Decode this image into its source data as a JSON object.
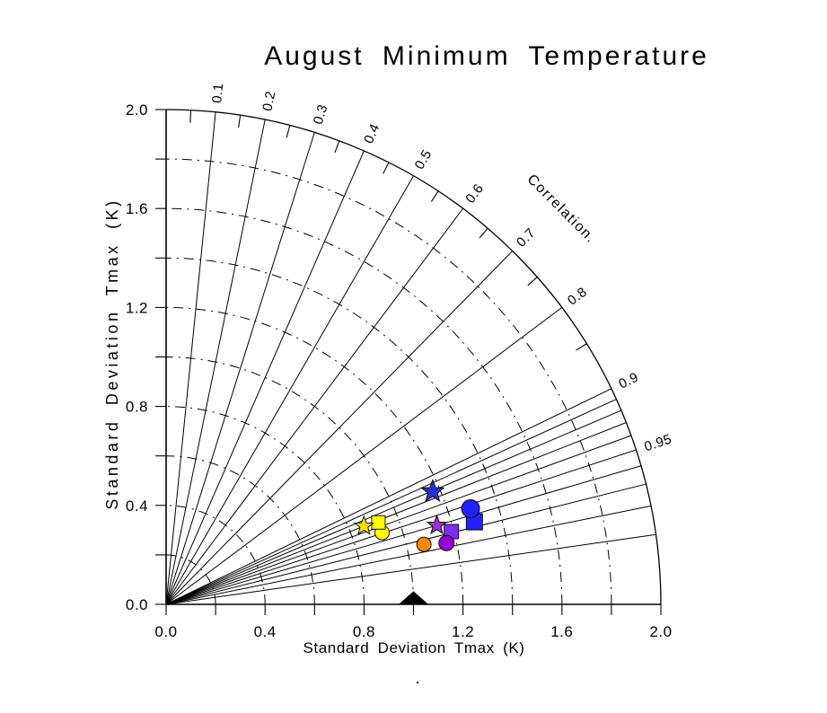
{
  "chart_data": {
    "type": "taylor_diagram",
    "title": "August Minimum Temperature",
    "xlabel": "Standard Deviation Tmax (K)",
    "ylabel": "Standard Deviation Tmax (K)",
    "correlation_axis_label": "Correlation.",
    "axis_range": [
      0.0,
      2.0
    ],
    "tick_values": [
      0.0,
      0.4,
      0.8,
      1.2,
      1.6,
      2.0
    ],
    "tick_labels": [
      "0.0",
      "0.4",
      "0.8",
      "1.2",
      "1.6",
      "2.0"
    ],
    "minor_tick_step": 0.2,
    "grid_style": "dash-dot",
    "std_arc_radii": [
      0.2,
      0.4,
      0.6,
      0.8,
      1.0,
      1.2,
      1.4,
      1.6,
      1.8
    ],
    "correlation_lines": [
      0.1,
      0.2,
      0.3,
      0.4,
      0.5,
      0.6,
      0.7,
      0.8,
      0.9,
      0.91,
      0.92,
      0.93,
      0.94,
      0.95,
      0.96,
      0.97,
      0.98,
      0.99
    ],
    "correlation_minor_ticks": [
      0.05,
      0.15,
      0.25,
      0.35,
      0.45,
      0.55,
      0.65,
      0.75,
      0.85
    ],
    "correlation_labels": [
      {
        "value": 0.1,
        "label": "0.1"
      },
      {
        "value": 0.2,
        "label": "0.2"
      },
      {
        "value": 0.3,
        "label": "0.3"
      },
      {
        "value": 0.4,
        "label": "0.4"
      },
      {
        "value": 0.5,
        "label": "0.5"
      },
      {
        "value": 0.6,
        "label": "0.6"
      },
      {
        "value": 0.7,
        "label": "0.7"
      },
      {
        "value": 0.8,
        "label": "0.8"
      },
      {
        "value": 0.9,
        "label": "0.9"
      },
      {
        "value": 0.95,
        "label": "0.95"
      }
    ],
    "reference_marker": {
      "id": "reference-triangle",
      "marker": "triangle",
      "color": "#000000",
      "std": 1.0,
      "corr": 1.0,
      "width": 32,
      "height": 14
    },
    "points": [
      {
        "id": "yellow-circle",
        "marker": "circle",
        "color": "#FFFF00",
        "std": 0.92,
        "corr": 0.949,
        "size": 16
      },
      {
        "id": "yellow-square",
        "marker": "square",
        "color": "#FFFF00",
        "std": 0.92,
        "corr": 0.933,
        "size": 15
      },
      {
        "id": "yellow-star",
        "marker": "star",
        "color": "#FFDD00",
        "std": 0.86,
        "corr": 0.93,
        "size": 22
      },
      {
        "id": "blue-star",
        "marker": "star",
        "color": "#2233CC",
        "std": 1.17,
        "corr": 0.921,
        "size": 26
      },
      {
        "id": "blue-square",
        "marker": "square",
        "color": "#2222FF",
        "std": 1.29,
        "corr": 0.966,
        "size": 18
      },
      {
        "id": "blue-circle",
        "marker": "circle",
        "color": "#2222FF",
        "std": 1.29,
        "corr": 0.954,
        "size": 20
      },
      {
        "id": "purple-star",
        "marker": "star",
        "color": "#9933CC",
        "std": 1.14,
        "corr": 0.96,
        "size": 22
      },
      {
        "id": "purple-square",
        "marker": "square",
        "color": "#7F2FEF",
        "std": 1.19,
        "corr": 0.969,
        "size": 16
      },
      {
        "id": "purple-circle",
        "marker": "circle",
        "color": "#9400D3",
        "std": 1.16,
        "corr": 0.977,
        "size": 17
      },
      {
        "id": "orange-circle",
        "marker": "circle",
        "color": "#FF8800",
        "std": 1.07,
        "corr": 0.974,
        "size": 16
      }
    ],
    "footnote_dot": "."
  },
  "colors": {
    "background": "#FFFFFF",
    "axis": "#000000"
  }
}
